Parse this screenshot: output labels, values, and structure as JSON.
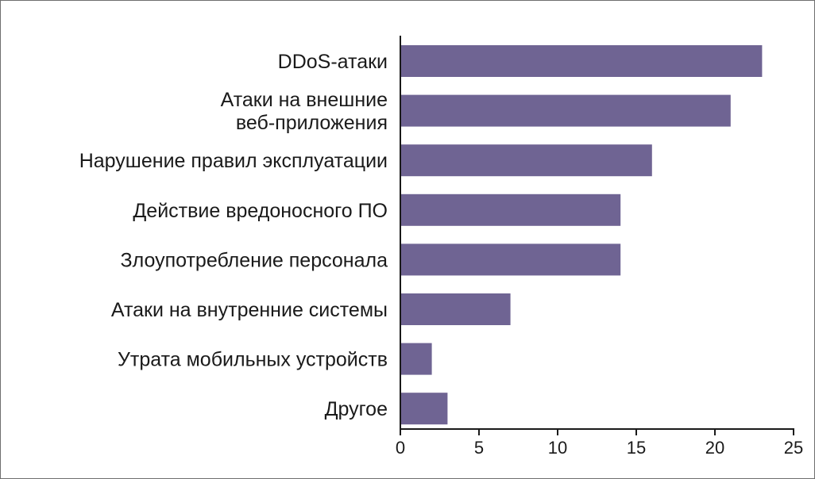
{
  "chart_data": {
    "type": "bar",
    "orientation": "horizontal",
    "categories": [
      [
        "DDoS-атаки"
      ],
      [
        "Атаки на внешние",
        "веб-приложения"
      ],
      [
        "Нарушение правил эксплуатации"
      ],
      [
        "Действие вредоносного ПО"
      ],
      [
        "Злоупотребление персонала"
      ],
      [
        "Атаки на внутренние системы"
      ],
      [
        "Утрата мобильных устройств"
      ],
      [
        "Другое"
      ]
    ],
    "values": [
      23,
      21,
      16,
      14,
      14,
      7,
      2,
      3
    ],
    "xlim": [
      0,
      25
    ],
    "xticks": [
      0,
      5,
      10,
      15,
      20,
      25
    ],
    "bar_color": "#6f6493",
    "axis_color": "#1a1a1a",
    "grid": false
  }
}
